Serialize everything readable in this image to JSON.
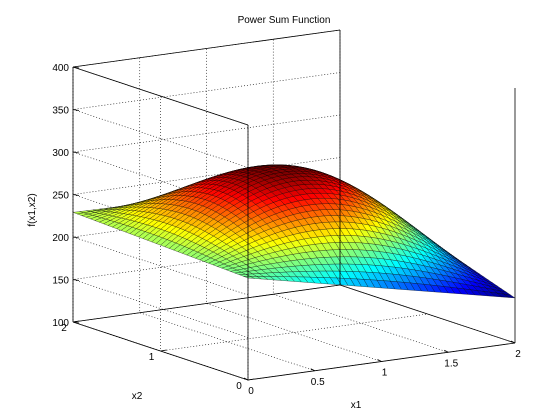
{
  "chart_data": {
    "type": "surface",
    "title": "Power Sum Function",
    "xlabel": "x1",
    "ylabel": "x2",
    "zlabel": "f(x1,x2)",
    "xlim": [
      0,
      2
    ],
    "ylim": [
      0,
      2
    ],
    "zlim": [
      100,
      400
    ],
    "x_ticks": [
      "0",
      "0.5",
      "1",
      "1.5",
      "2"
    ],
    "y_ticks": [
      "0",
      "1",
      "2"
    ],
    "z_ticks": [
      "100",
      "150",
      "200",
      "250",
      "300",
      "350",
      "400"
    ],
    "grid": true,
    "colormap": "jet",
    "surface_points": [
      {
        "x1": 0,
        "x2": 0,
        "f": 220
      },
      {
        "x1": 2,
        "x2": 0,
        "f": 153
      },
      {
        "x1": 2,
        "x2": 2,
        "f": 224
      },
      {
        "x1": 0,
        "x2": 2,
        "f": 229
      },
      {
        "x1": 1,
        "x2": 1,
        "f": 288
      },
      {
        "x1": 1.1,
        "x2": 1.1,
        "f": 290
      }
    ]
  }
}
